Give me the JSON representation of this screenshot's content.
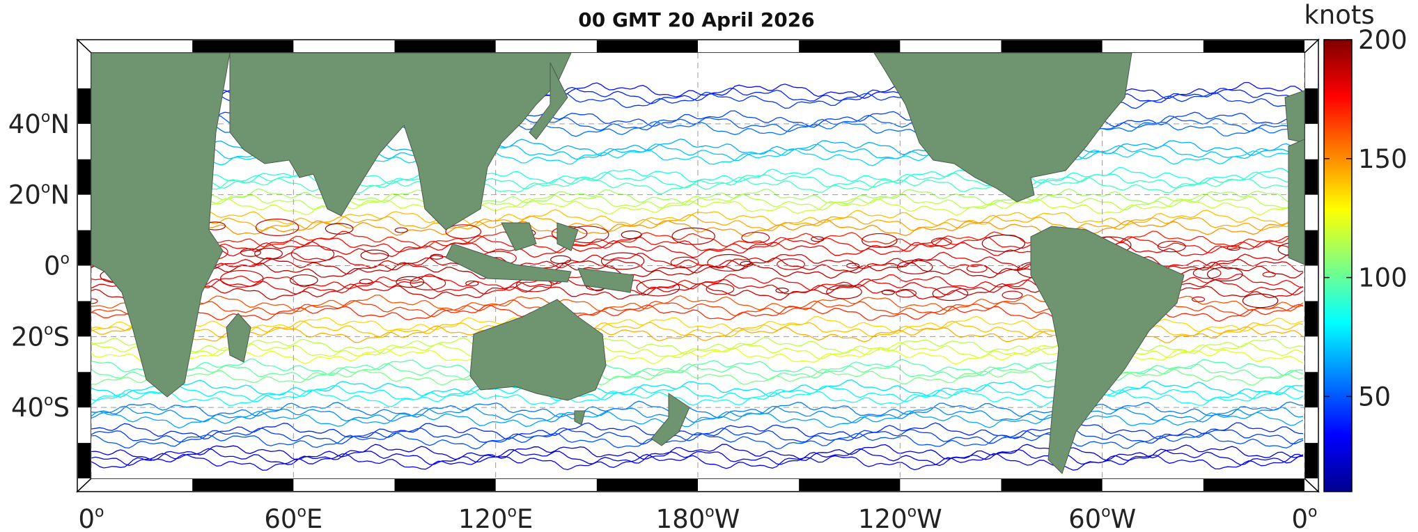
{
  "title": "00 GMT 20 April 2026",
  "colorbar": {
    "unit": "knots",
    "min": 10,
    "max": 200,
    "ticks": [
      {
        "value": 200,
        "label": "200"
      },
      {
        "value": 150,
        "label": "150"
      },
      {
        "value": 100,
        "label": "100"
      },
      {
        "value": 50,
        "label": "50"
      }
    ],
    "stops": [
      "#00008f",
      "#0000ff",
      "#0080ff",
      "#00ffff",
      "#80ff80",
      "#ffff00",
      "#ff8000",
      "#ff0000",
      "#800000"
    ]
  },
  "map": {
    "projection": "equirectangular",
    "lon_range": [
      0,
      360
    ],
    "lat_range": [
      -60,
      60
    ],
    "land_color": "#6e9470",
    "grid": true,
    "x_ticks": [
      {
        "lon": 0,
        "num": "0",
        "hemi": ""
      },
      {
        "lon": 60,
        "num": "60",
        "hemi": "E"
      },
      {
        "lon": 120,
        "num": "120",
        "hemi": "E"
      },
      {
        "lon": 180,
        "num": "180",
        "hemi": "W"
      },
      {
        "lon": 240,
        "num": "120",
        "hemi": "W"
      },
      {
        "lon": 300,
        "num": "60",
        "hemi": "W"
      },
      {
        "lon": 360,
        "num": "0",
        "hemi": ""
      }
    ],
    "y_ticks": [
      {
        "lat": 40,
        "num": "40",
        "hemi": "N"
      },
      {
        "lat": 20,
        "num": "20",
        "hemi": "N"
      },
      {
        "lat": 0,
        "num": "0",
        "hemi": ""
      },
      {
        "lat": -20,
        "num": "20",
        "hemi": "S"
      },
      {
        "lat": -40,
        "num": "40",
        "hemi": "S"
      }
    ],
    "speed_bands": [
      {
        "lat": 48,
        "speed": 40
      },
      {
        "lat": 40,
        "speed": 50
      },
      {
        "lat": 32,
        "speed": 70
      },
      {
        "lat": 24,
        "speed": 90
      },
      {
        "lat": 18,
        "speed": 115
      },
      {
        "lat": 12,
        "speed": 145
      },
      {
        "lat": 6,
        "speed": 175
      },
      {
        "lat": 0,
        "speed": 185
      },
      {
        "lat": -6,
        "speed": 180
      },
      {
        "lat": -12,
        "speed": 165
      },
      {
        "lat": -18,
        "speed": 140
      },
      {
        "lat": -24,
        "speed": 120
      },
      {
        "lat": -30,
        "speed": 100
      },
      {
        "lat": -36,
        "speed": 80
      },
      {
        "lat": -42,
        "speed": 60
      },
      {
        "lat": -48,
        "speed": 45
      },
      {
        "lat": -54,
        "speed": 30
      }
    ]
  }
}
